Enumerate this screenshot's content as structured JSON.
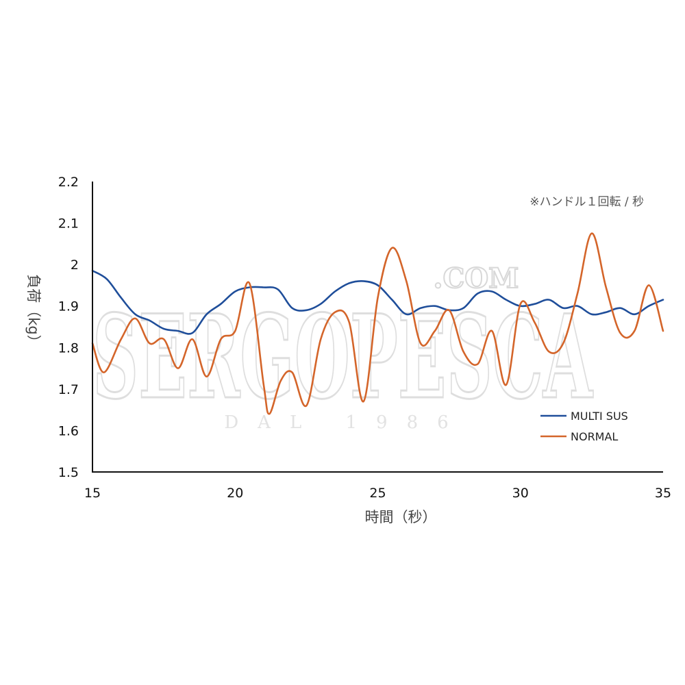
{
  "watermark": {
    "main": "SERGOPESCA",
    "domain": ".COM",
    "sub": "DAL 1986"
  },
  "chart_data": {
    "type": "line",
    "title": "",
    "xlabel": "時間（秒）",
    "ylabel": "負荷（kg）",
    "note": "※ハンドル１回転 / 秒",
    "xlim": [
      15,
      35
    ],
    "ylim": [
      1.5,
      2.2
    ],
    "xticks": [
      "15",
      "20",
      "25",
      "30",
      "35"
    ],
    "yticks": [
      "1.5",
      "1.6",
      "1.7",
      "1.8",
      "1.9",
      "2",
      "2.1",
      "2.2"
    ],
    "grid": false,
    "legend_position": "lower-right",
    "series": [
      {
        "name": "MULTI SUS",
        "color": "#1f4e9a",
        "points": [
          [
            15.0,
            1.985
          ],
          [
            15.5,
            1.965
          ],
          [
            16.0,
            1.92
          ],
          [
            16.5,
            1.88
          ],
          [
            17.0,
            1.865
          ],
          [
            17.5,
            1.845
          ],
          [
            18.0,
            1.84
          ],
          [
            18.5,
            1.835
          ],
          [
            19.0,
            1.88
          ],
          [
            19.5,
            1.905
          ],
          [
            20.0,
            1.935
          ],
          [
            20.5,
            1.945
          ],
          [
            21.0,
            1.945
          ],
          [
            21.5,
            1.94
          ],
          [
            22.0,
            1.895
          ],
          [
            22.5,
            1.89
          ],
          [
            23.0,
            1.905
          ],
          [
            23.5,
            1.935
          ],
          [
            24.0,
            1.955
          ],
          [
            24.5,
            1.96
          ],
          [
            25.0,
            1.95
          ],
          [
            25.5,
            1.915
          ],
          [
            26.0,
            1.88
          ],
          [
            26.5,
            1.895
          ],
          [
            27.0,
            1.9
          ],
          [
            27.5,
            1.89
          ],
          [
            28.0,
            1.895
          ],
          [
            28.5,
            1.93
          ],
          [
            29.0,
            1.935
          ],
          [
            29.5,
            1.915
          ],
          [
            30.0,
            1.9
          ],
          [
            30.5,
            1.905
          ],
          [
            31.0,
            1.915
          ],
          [
            31.5,
            1.895
          ],
          [
            32.0,
            1.9
          ],
          [
            32.5,
            1.88
          ],
          [
            33.0,
            1.885
          ],
          [
            33.5,
            1.895
          ],
          [
            34.0,
            1.88
          ],
          [
            34.5,
            1.9
          ],
          [
            35.0,
            1.915
          ]
        ]
      },
      {
        "name": "NORMAL",
        "color": "#d4652a",
        "points": [
          [
            15.0,
            1.81
          ],
          [
            15.4,
            1.74
          ],
          [
            16.0,
            1.82
          ],
          [
            16.5,
            1.87
          ],
          [
            17.0,
            1.81
          ],
          [
            17.5,
            1.82
          ],
          [
            18.0,
            1.75
          ],
          [
            18.5,
            1.82
          ],
          [
            19.0,
            1.73
          ],
          [
            19.5,
            1.82
          ],
          [
            20.0,
            1.84
          ],
          [
            20.5,
            1.955
          ],
          [
            21.0,
            1.71
          ],
          [
            21.2,
            1.64
          ],
          [
            21.6,
            1.72
          ],
          [
            22.0,
            1.74
          ],
          [
            22.5,
            1.66
          ],
          [
            23.0,
            1.82
          ],
          [
            23.5,
            1.885
          ],
          [
            24.0,
            1.86
          ],
          [
            24.5,
            1.67
          ],
          [
            25.0,
            1.92
          ],
          [
            25.5,
            2.04
          ],
          [
            26.0,
            1.96
          ],
          [
            26.5,
            1.81
          ],
          [
            27.0,
            1.84
          ],
          [
            27.5,
            1.89
          ],
          [
            28.0,
            1.79
          ],
          [
            28.5,
            1.76
          ],
          [
            29.0,
            1.84
          ],
          [
            29.5,
            1.71
          ],
          [
            30.0,
            1.905
          ],
          [
            30.5,
            1.86
          ],
          [
            31.0,
            1.79
          ],
          [
            31.5,
            1.81
          ],
          [
            32.0,
            1.93
          ],
          [
            32.5,
            2.075
          ],
          [
            33.0,
            1.945
          ],
          [
            33.5,
            1.835
          ],
          [
            34.0,
            1.84
          ],
          [
            34.5,
            1.95
          ],
          [
            35.0,
            1.84
          ]
        ]
      }
    ]
  }
}
